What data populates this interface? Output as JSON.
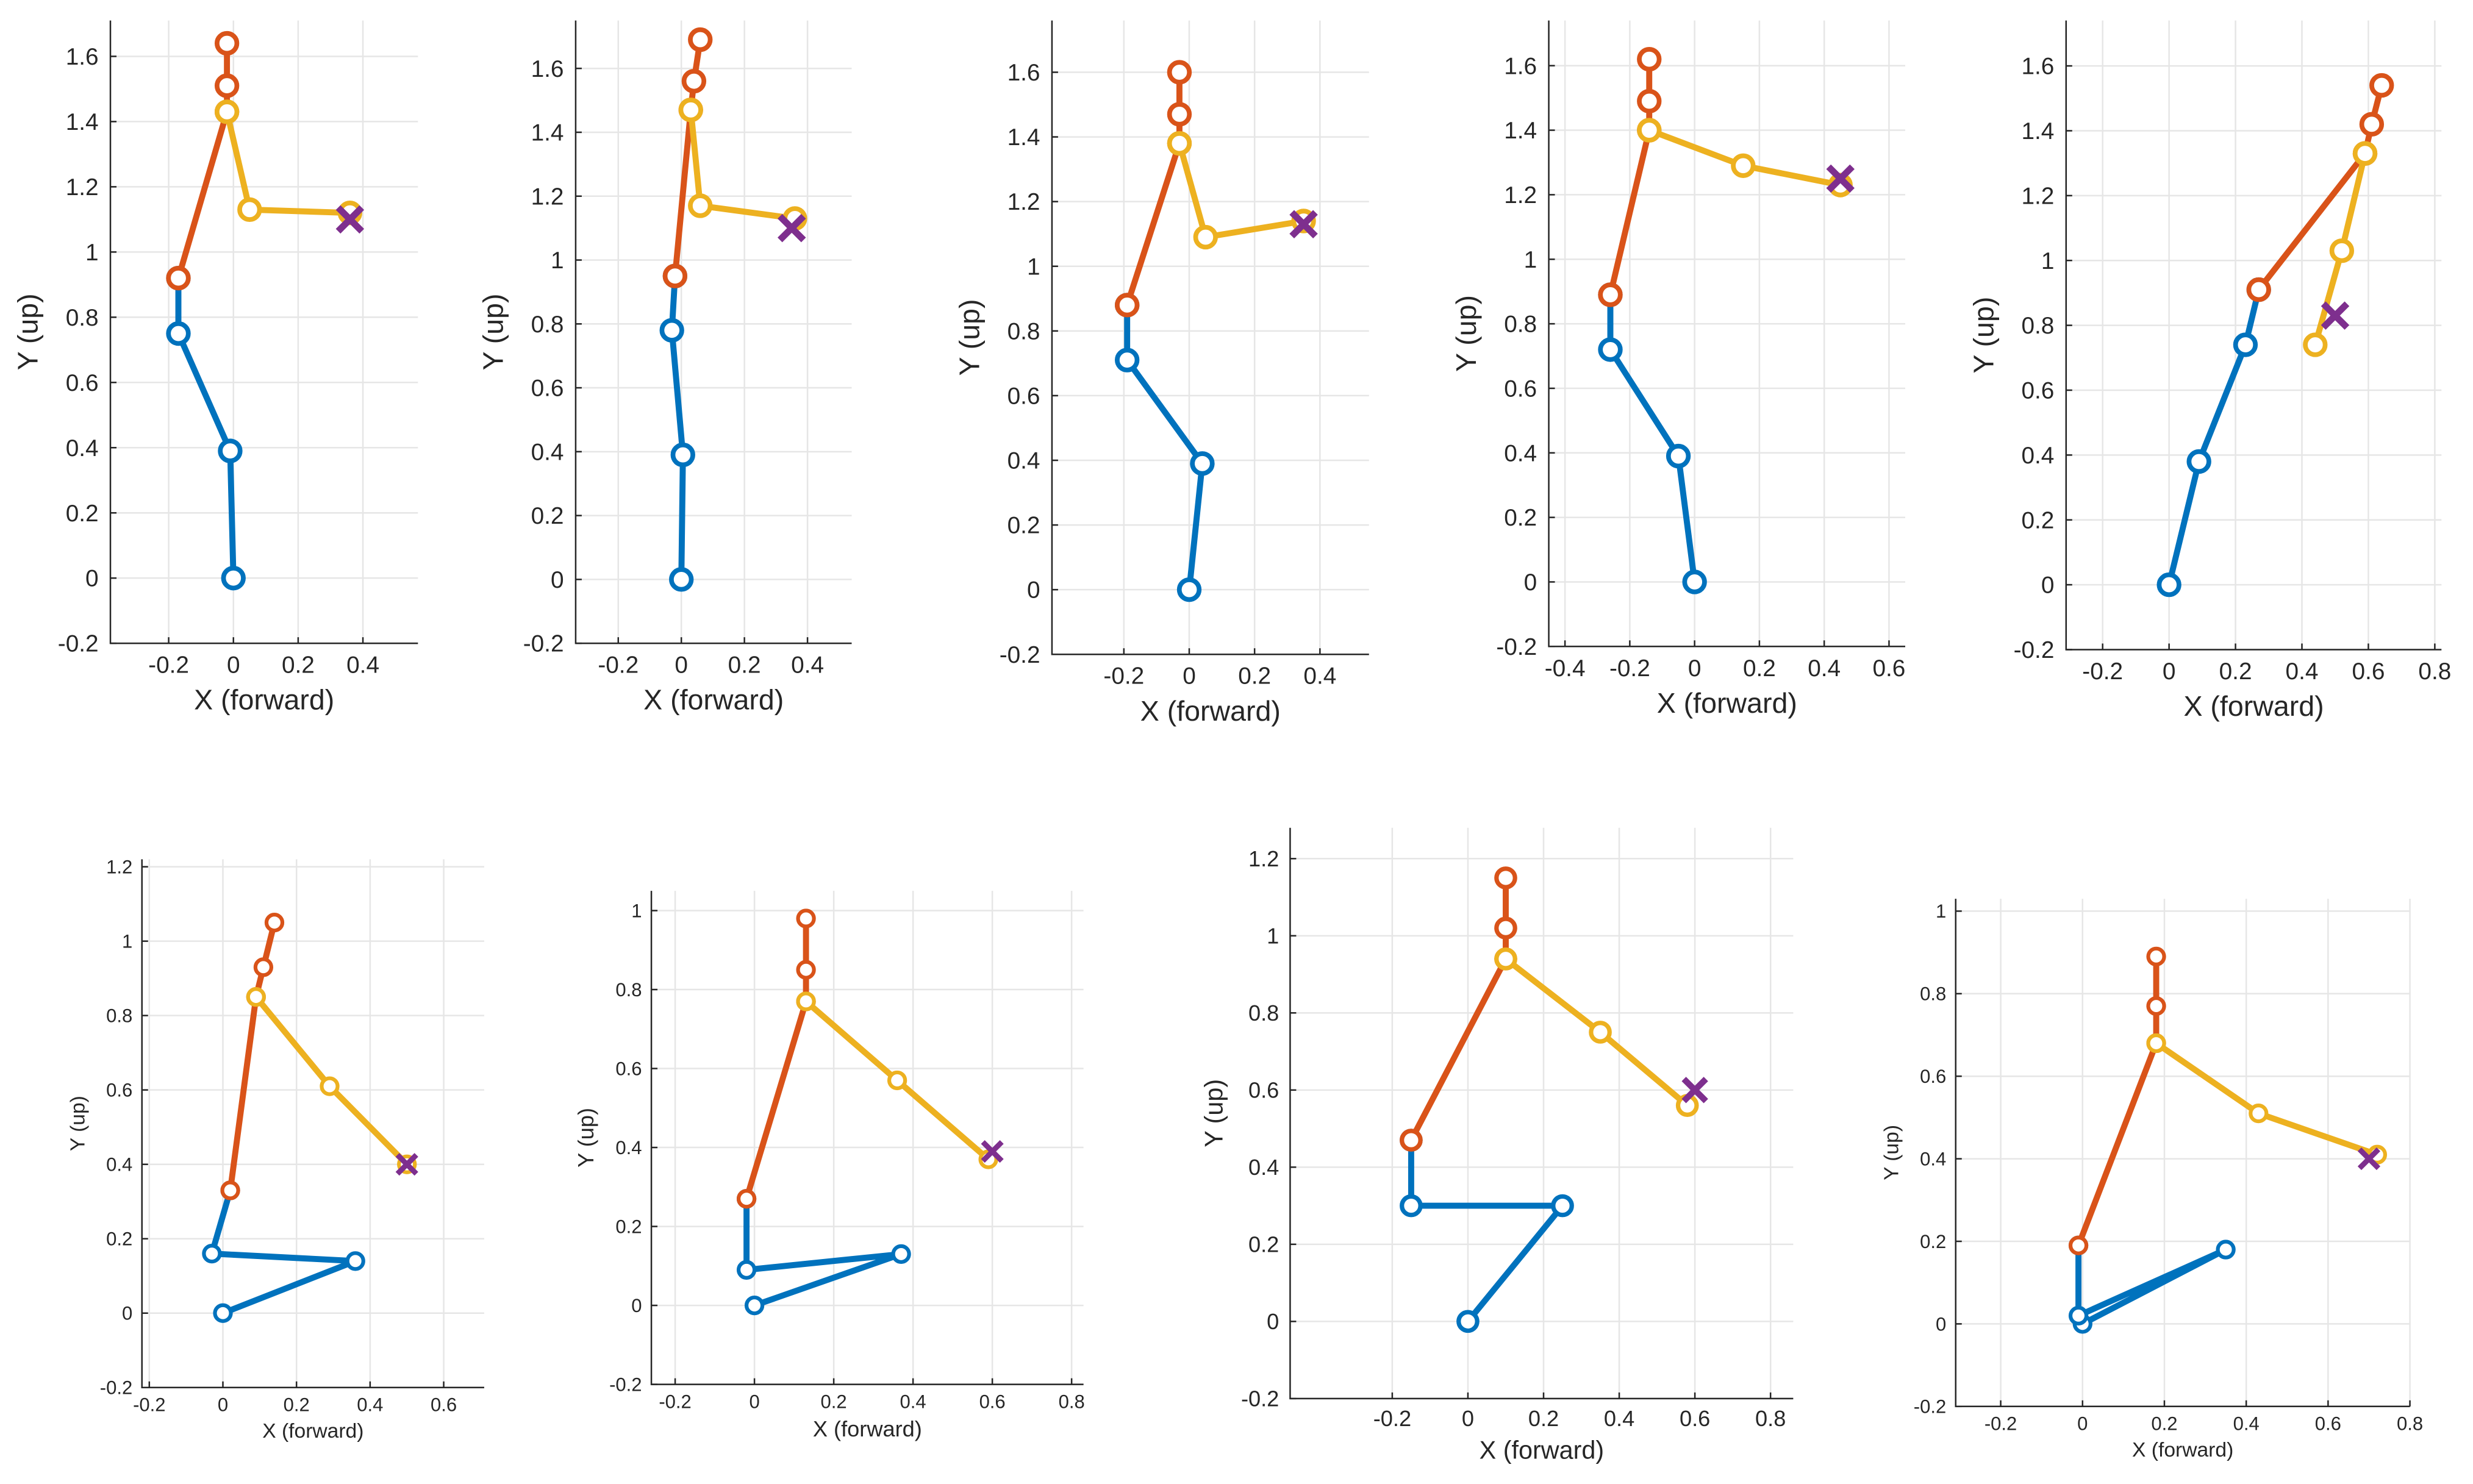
{
  "colors": {
    "legs": "#0072BD",
    "torso": "#D95319",
    "arm": "#EDB120",
    "target": "#7E2F8E"
  },
  "chart_data": [
    {
      "type": "line",
      "xlabel": "X (forward)",
      "ylabel": "Y (up)",
      "xlim": [
        -0.38,
        0.57
      ],
      "ylim": [
        -0.2,
        1.71
      ],
      "grid": true,
      "xticks": [
        "-0.2",
        "0",
        "0.2",
        "0.4"
      ],
      "yticks": [
        "-0.2",
        "0",
        "0.2",
        "0.4",
        "0.6",
        "0.8",
        "1",
        "1.2",
        "1.4",
        "1.6"
      ],
      "series": [
        {
          "name": "legs",
          "x": [
            0,
            -0.01,
            -0.17,
            -0.17
          ],
          "y": [
            0,
            0.39,
            0.75,
            0.92
          ]
        },
        {
          "name": "torso",
          "x": [
            -0.17,
            -0.02,
            -0.02,
            -0.02
          ],
          "y": [
            0.92,
            1.43,
            1.51,
            1.64
          ]
        },
        {
          "name": "arm",
          "x": [
            -0.02,
            0.05,
            0.36
          ],
          "y": [
            1.43,
            1.13,
            1.12
          ]
        }
      ],
      "target": {
        "x": 0.36,
        "y": 1.1
      }
    },
    {
      "type": "line",
      "xlabel": "X (forward)",
      "ylabel": "Y (up)",
      "xlim": [
        -0.335,
        0.54
      ],
      "ylim": [
        -0.2,
        1.75
      ],
      "grid": true,
      "xticks": [
        "-0.2",
        "0",
        "0.2",
        "0.4"
      ],
      "yticks": [
        "-0.2",
        "0",
        "0.2",
        "0.4",
        "0.6",
        "0.8",
        "1",
        "1.2",
        "1.4",
        "1.6"
      ],
      "series": [
        {
          "name": "legs",
          "x": [
            0,
            0.005,
            -0.03,
            -0.02
          ],
          "y": [
            0,
            0.39,
            0.78,
            0.95
          ]
        },
        {
          "name": "torso",
          "x": [
            -0.02,
            0.03,
            0.04,
            0.06
          ],
          "y": [
            0.95,
            1.47,
            1.56,
            1.69
          ]
        },
        {
          "name": "arm",
          "x": [
            0.03,
            0.06,
            0.36
          ],
          "y": [
            1.47,
            1.17,
            1.13
          ]
        }
      ],
      "target": {
        "x": 0.35,
        "y": 1.1
      }
    },
    {
      "type": "line",
      "xlabel": "X (forward)",
      "ylabel": "Y (up)",
      "xlim": [
        -0.42,
        0.55
      ],
      "ylim": [
        -0.2,
        1.76
      ],
      "grid": true,
      "xticks": [
        "-0.2",
        "0",
        "0.2",
        "0.4"
      ],
      "yticks": [
        "-0.2",
        "0",
        "0.2",
        "0.4",
        "0.6",
        "0.8",
        "1",
        "1.2",
        "1.4",
        "1.6"
      ],
      "series": [
        {
          "name": "legs",
          "x": [
            0,
            0.04,
            -0.19,
            -0.19
          ],
          "y": [
            0,
            0.39,
            0.71,
            0.88
          ]
        },
        {
          "name": "torso",
          "x": [
            -0.19,
            -0.03,
            -0.03,
            -0.03
          ],
          "y": [
            0.88,
            1.38,
            1.47,
            1.6
          ]
        },
        {
          "name": "arm",
          "x": [
            -0.03,
            0.05,
            0.35
          ],
          "y": [
            1.38,
            1.09,
            1.14
          ]
        }
      ],
      "target": {
        "x": 0.35,
        "y": 1.13
      }
    },
    {
      "type": "line",
      "xlabel": "X (forward)",
      "ylabel": "Y (up)",
      "xlim": [
        -0.45,
        0.65
      ],
      "ylim": [
        -0.2,
        1.74
      ],
      "grid": true,
      "xticks": [
        "-0.4",
        "-0.2",
        "0",
        "0.2",
        "0.4",
        "0.6"
      ],
      "yticks": [
        "-0.2",
        "0",
        "0.2",
        "0.4",
        "0.6",
        "0.8",
        "1",
        "1.2",
        "1.4",
        "1.6"
      ],
      "series": [
        {
          "name": "legs",
          "x": [
            0,
            -0.05,
            -0.26,
            -0.26
          ],
          "y": [
            0,
            0.39,
            0.72,
            0.89
          ]
        },
        {
          "name": "torso",
          "x": [
            -0.26,
            -0.14,
            -0.14,
            -0.14
          ],
          "y": [
            0.89,
            1.4,
            1.49,
            1.62
          ]
        },
        {
          "name": "arm",
          "x": [
            -0.14,
            0.15,
            0.45
          ],
          "y": [
            1.4,
            1.29,
            1.23
          ]
        }
      ],
      "target": {
        "x": 0.45,
        "y": 1.25
      }
    },
    {
      "type": "line",
      "xlabel": "X (forward)",
      "ylabel": "Y (up)",
      "xlim": [
        -0.31,
        0.82
      ],
      "ylim": [
        -0.2,
        1.74
      ],
      "grid": true,
      "xticks": [
        "-0.2",
        "0",
        "0.2",
        "0.4",
        "0.6",
        "0.8"
      ],
      "yticks": [
        "-0.2",
        "0",
        "0.2",
        "0.4",
        "0.6",
        "0.8",
        "1",
        "1.2",
        "1.4",
        "1.6"
      ],
      "series": [
        {
          "name": "legs",
          "x": [
            0,
            0.09,
            0.23,
            0.27
          ],
          "y": [
            0,
            0.38,
            0.74,
            0.91
          ]
        },
        {
          "name": "torso",
          "x": [
            0.27,
            0.59,
            0.61,
            0.64
          ],
          "y": [
            0.91,
            1.33,
            1.42,
            1.54
          ]
        },
        {
          "name": "arm",
          "x": [
            0.59,
            0.52,
            0.44
          ],
          "y": [
            1.33,
            1.03,
            0.74
          ]
        }
      ],
      "target": {
        "x": 0.5,
        "y": 0.83
      }
    },
    {
      "type": "line",
      "xlabel": "X (forward)",
      "ylabel": "Y (up)",
      "xlim": [
        -0.22,
        0.71
      ],
      "ylim": [
        -0.2,
        1.22
      ],
      "grid": true,
      "xticks": [
        "-0.2",
        "0",
        "0.2",
        "0.4",
        "0.6"
      ],
      "yticks": [
        "-0.2",
        "0",
        "0.2",
        "0.4",
        "0.6",
        "0.8",
        "1",
        "1.2"
      ],
      "series": [
        {
          "name": "legs",
          "x": [
            0,
            0.36,
            -0.03,
            0.02
          ],
          "y": [
            0,
            0.14,
            0.16,
            0.33
          ]
        },
        {
          "name": "torso",
          "x": [
            0.02,
            0.09,
            0.11,
            0.14
          ],
          "y": [
            0.33,
            0.85,
            0.93,
            1.05
          ]
        },
        {
          "name": "arm",
          "x": [
            0.09,
            0.29,
            0.5
          ],
          "y": [
            0.85,
            0.61,
            0.4
          ]
        }
      ],
      "target": {
        "x": 0.5,
        "y": 0.4
      }
    },
    {
      "type": "line",
      "xlabel": "X (forward)",
      "ylabel": "Y (up)",
      "xlim": [
        -0.26,
        0.83
      ],
      "ylim": [
        -0.2,
        1.05
      ],
      "grid": true,
      "xticks": [
        "-0.2",
        "0",
        "0.2",
        "0.4",
        "0.6",
        "0.8"
      ],
      "yticks": [
        "-0.2",
        "0",
        "0.2",
        "0.4",
        "0.6",
        "0.8",
        "1"
      ],
      "series": [
        {
          "name": "legs",
          "x": [
            0,
            0.37,
            -0.02,
            -0.02
          ],
          "y": [
            0,
            0.13,
            0.09,
            0.27
          ]
        },
        {
          "name": "torso",
          "x": [
            -0.02,
            0.13,
            0.13,
            0.13
          ],
          "y": [
            0.27,
            0.77,
            0.85,
            0.98
          ]
        },
        {
          "name": "arm",
          "x": [
            0.13,
            0.36,
            0.59
          ],
          "y": [
            0.77,
            0.57,
            0.37
          ]
        }
      ],
      "target": {
        "x": 0.6,
        "y": 0.39
      }
    },
    {
      "type": "line",
      "xlabel": "X (forward)",
      "ylabel": "Y (up)",
      "xlim": [
        -0.47,
        0.86
      ],
      "ylim": [
        -0.2,
        1.28
      ],
      "grid": true,
      "xticks": [
        "-0.2",
        "0",
        "0.2",
        "0.4",
        "0.6",
        "0.8"
      ],
      "yticks": [
        "-0.2",
        "0",
        "0.2",
        "0.4",
        "0.6",
        "0.8",
        "1",
        "1.2"
      ],
      "series": [
        {
          "name": "legs",
          "x": [
            0,
            0.25,
            -0.15,
            -0.15
          ],
          "y": [
            0,
            0.3,
            0.3,
            0.47
          ]
        },
        {
          "name": "torso",
          "x": [
            -0.15,
            0.1,
            0.1,
            0.1
          ],
          "y": [
            0.47,
            0.94,
            1.02,
            1.15
          ]
        },
        {
          "name": "arm",
          "x": [
            0.1,
            0.35,
            0.58
          ],
          "y": [
            0.94,
            0.75,
            0.56
          ]
        }
      ],
      "target": {
        "x": 0.6,
        "y": 0.6
      }
    },
    {
      "type": "line",
      "xlabel": "X (forward)",
      "ylabel": "Y (up)",
      "xlim": [
        -0.31,
        0.8
      ],
      "ylim": [
        -0.2,
        1.03
      ],
      "grid": true,
      "xticks": [
        "-0.2",
        "0",
        "0.2",
        "0.4",
        "0.6",
        "0.8"
      ],
      "yticks": [
        "-0.2",
        "0",
        "0.2",
        "0.4",
        "0.6",
        "0.8",
        "1"
      ],
      "series": [
        {
          "name": "legs",
          "x": [
            0,
            0.35,
            -0.01,
            -0.01
          ],
          "y": [
            0,
            0.18,
            0.02,
            0.19
          ]
        },
        {
          "name": "torso",
          "x": [
            -0.01,
            0.18,
            0.18,
            0.18
          ],
          "y": [
            0.19,
            0.68,
            0.77,
            0.89
          ]
        },
        {
          "name": "arm",
          "x": [
            0.18,
            0.43,
            0.72
          ],
          "y": [
            0.68,
            0.51,
            0.41
          ]
        }
      ],
      "target": {
        "x": 0.7,
        "y": 0.4
      }
    }
  ]
}
